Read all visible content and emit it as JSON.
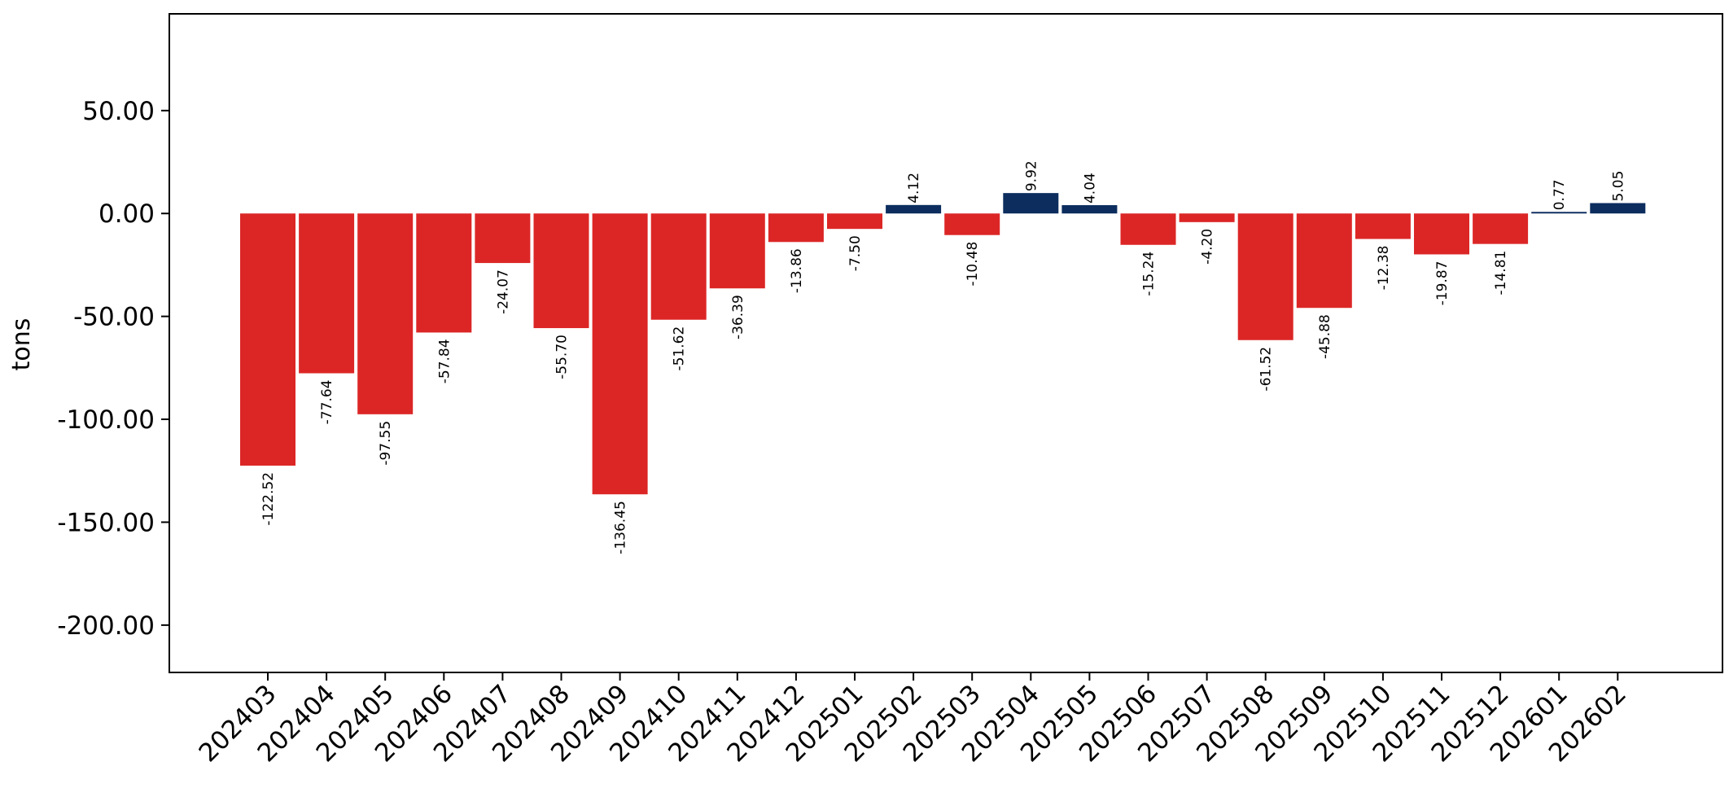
{
  "chart_data": {
    "type": "bar",
    "title": "",
    "xlabel": "",
    "ylabel": "tons",
    "ylim": [
      -223,
      97
    ],
    "yticks": [
      50,
      0,
      -50,
      -100,
      -150,
      -200
    ],
    "ytick_labels": [
      "50.00",
      "0.00",
      "-50.00",
      "-100.00",
      "-150.00",
      "-200.00"
    ],
    "grid": false,
    "categories": [
      "202403",
      "202404",
      "202405",
      "202406",
      "202407",
      "202408",
      "202409",
      "202410",
      "202411",
      "202412",
      "202501",
      "202502",
      "202503",
      "202504",
      "202505",
      "202506",
      "202507",
      "202508",
      "202509",
      "202510",
      "202511",
      "202512",
      "202601",
      "202602"
    ],
    "values": [
      -122.52,
      -77.64,
      -97.55,
      -57.84,
      -24.07,
      -55.7,
      -136.45,
      -51.62,
      -36.39,
      -13.86,
      -7.5,
      4.12,
      -10.48,
      9.92,
      4.04,
      -15.24,
      -4.2,
      -61.52,
      -45.88,
      -12.38,
      -19.87,
      -14.81,
      0.77,
      5.05
    ],
    "value_labels": [
      "-122.52",
      "-77.64",
      "-97.55",
      "-57.84",
      "-24.07",
      "-55.70",
      "-136.45",
      "-51.62",
      "-36.39",
      "-13.86",
      "-7.50",
      "4.12",
      "-10.48",
      "9.92",
      "4.04",
      "-15.24",
      "-4.20",
      "-61.52",
      "-45.88",
      "-12.38",
      "-19.87",
      "-14.81",
      "0.77",
      "5.05"
    ],
    "colors": {
      "negative": "#dc2626",
      "positive": "#0c2d5e",
      "axis": "#000000"
    }
  }
}
